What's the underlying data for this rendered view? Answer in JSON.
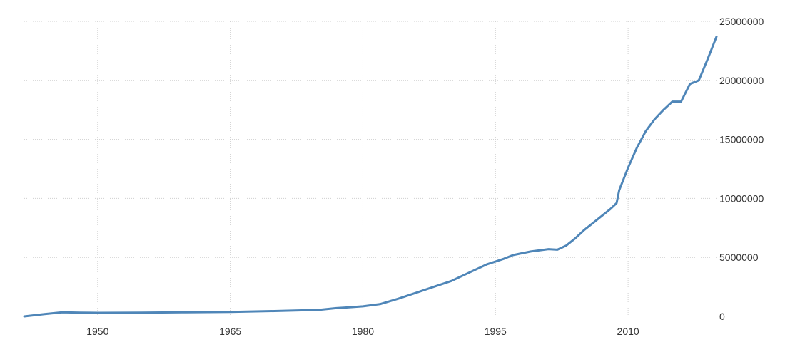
{
  "chart_data": {
    "type": "line",
    "title": "",
    "xlabel": "",
    "ylabel": "",
    "xlim": [
      1941.7,
      2020
    ],
    "ylim": [
      0,
      25000000
    ],
    "grid": true,
    "y_axis_side": "right",
    "x_ticks": [
      1950,
      1965,
      1980,
      1995,
      2010
    ],
    "x_tick_labels": [
      "1950",
      "1965",
      "1980",
      "1995",
      "2010"
    ],
    "y_ticks": [
      0,
      5000000,
      10000000,
      15000000,
      20000000,
      25000000
    ],
    "y_tick_labels": [
      "0",
      "5000000",
      "10000000",
      "15000000",
      "20000000",
      "25000000"
    ],
    "series": [
      {
        "color": "#4f86b8",
        "x": [
          1941.7,
          1944,
          1946,
          1948,
          1950,
          1955,
          1960,
          1965,
          1970,
          1975,
          1977,
          1978,
          1980,
          1982,
          1984,
          1986,
          1988,
          1990,
          1992,
          1994,
          1996,
          1997,
          1999,
          2001,
          2002,
          2003,
          2004,
          2005,
          2006,
          2007,
          2008,
          2008.7,
          2009,
          2010,
          2011,
          2012,
          2013,
          2014,
          2015,
          2016,
          2017,
          2018,
          2019,
          2020
        ],
        "y": [
          0,
          200000,
          350000,
          320000,
          300000,
          320000,
          350000,
          380000,
          450000,
          550000,
          700000,
          750000,
          850000,
          1050000,
          1500000,
          2000000,
          2500000,
          3000000,
          3700000,
          4400000,
          4900000,
          5200000,
          5500000,
          5700000,
          5650000,
          6000000,
          6600000,
          7300000,
          7900000,
          8500000,
          9100000,
          9600000,
          10700000,
          12600000,
          14300000,
          15700000,
          16700000,
          17500000,
          18200000,
          18200000,
          19700000,
          20000000,
          21800000,
          23700000
        ]
      }
    ]
  }
}
